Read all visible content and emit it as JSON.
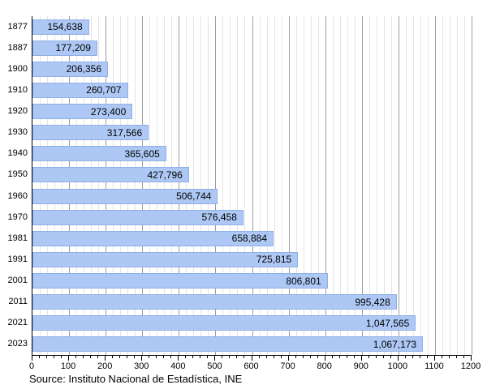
{
  "chart_data": {
    "type": "bar",
    "orientation": "horizontal",
    "title": "",
    "categories": [
      "1877",
      "1887",
      "1900",
      "1910",
      "1920",
      "1930",
      "1940",
      "1950",
      "1960",
      "1970",
      "1981",
      "1991",
      "2001",
      "2011",
      "2021",
      "2023"
    ],
    "values": [
      154638,
      177209,
      206356,
      260707,
      273400,
      317566,
      365605,
      427796,
      506744,
      576458,
      658884,
      725815,
      806801,
      995428,
      1047565,
      1067173
    ],
    "value_labels": [
      "154,638",
      "177,209",
      "206,356",
      "260,707",
      "273,400",
      "317,566",
      "365,605",
      "427,796",
      "506,744",
      "576,458",
      "658,884",
      "725,815",
      "806,801",
      "995,428",
      "1,047,565",
      "1,067,173"
    ],
    "x_axis": {
      "min": 0,
      "max": 1200,
      "unit_divisor": 1000,
      "major_tick_step": 100,
      "minor_tick_step": 20,
      "tick_labels": [
        "0",
        "100",
        "200",
        "300",
        "400",
        "500",
        "600",
        "700",
        "800",
        "900",
        "1000",
        "1100",
        "1200"
      ]
    },
    "grid": "vertical major and minor gridlines, no top/right border",
    "legend_position": "none",
    "source": "Source: Instituto Nacional de Estadística, INE",
    "colors": {
      "bar_fill": "#aec8f5",
      "bar_border": "#8fafe5",
      "grid_major": "#9e9e9e",
      "grid_minor": "#e4e4e4",
      "axis": "#000000",
      "text": "#000000"
    }
  }
}
